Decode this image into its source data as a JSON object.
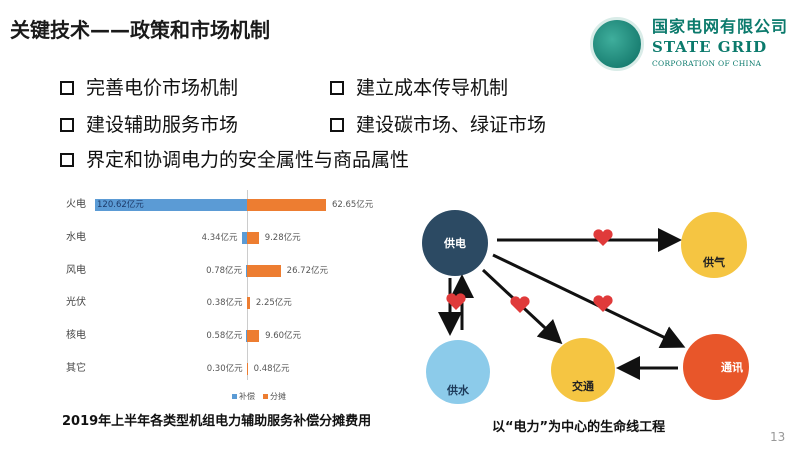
{
  "title": "关键技术——政策和市场机制",
  "logo": {
    "cn": "国家电网有限公司",
    "en": "STATE GRID",
    "sub": "CORPORATION OF CHINA"
  },
  "bullets": [
    "完善电价市场机制",
    "建立成本传导机制",
    "建设辅助服务市场",
    "建设碳市场、绿证市场",
    "界定和协调电力的安全属性与商品属性"
  ],
  "chart_data": {
    "type": "bar",
    "orientation": "horizontal-diverging",
    "title": "2019年上半年各类型机组电力辅助服务补偿分摊费用",
    "categories": [
      "火电",
      "水电",
      "风电",
      "光伏",
      "核电",
      "其它"
    ],
    "series": [
      {
        "name": "补偿",
        "color": "#5b9bd5",
        "values": [
          120.62,
          4.34,
          0.78,
          0.38,
          0.58,
          0.3
        ],
        "labels": [
          "120.62亿元",
          "4.34亿元",
          "0.78亿元",
          "0.38亿元",
          "0.58亿元",
          "0.30亿元"
        ]
      },
      {
        "name": "分摊",
        "color": "#ed7d31",
        "values": [
          62.65,
          9.28,
          26.72,
          2.25,
          9.6,
          0.48
        ],
        "labels": [
          "62.65亿元",
          "9.28亿元",
          "26.72亿元",
          "2.25亿元",
          "9.60亿元",
          "0.48亿元"
        ]
      }
    ],
    "legend": "bottom"
  },
  "diagram": {
    "caption": "以“电力”为中心的生命线工程",
    "nodes": {
      "power": "供电",
      "gas": "供气",
      "water": "供水",
      "traffic": "交通",
      "telecom": "通讯"
    },
    "colors": {
      "power": "#2c4a63",
      "gas": "#f5c542",
      "water": "#8ccbea",
      "traffic": "#f5c542",
      "telecom": "#e8562a",
      "heart": "#e03a3a"
    }
  },
  "page_number": "13"
}
